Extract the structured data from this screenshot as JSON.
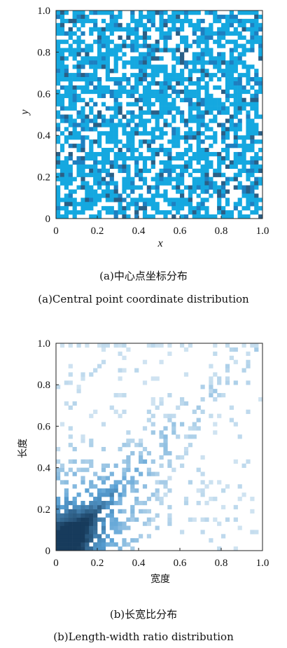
{
  "colors": {
    "scatter_dark": "#2a5f86",
    "scatter_mid": "#1e7fc0",
    "scatter_light": "#15a8e0",
    "hist_low": "#cfe3f1",
    "hist_high": "#173b5c"
  },
  "captions": {
    "a_cn": "(a)中心点坐标分布",
    "a_en": "(a)Central point coordinate distribution",
    "b_cn": "(b)长宽比分布",
    "b_en": "(b)Length-width ratio distribution"
  },
  "chart_data": [
    {
      "id": "a",
      "type": "heatmap",
      "title": "",
      "xlabel": "x",
      "ylabel": "y",
      "xlim": [
        0,
        1
      ],
      "ylim": [
        0,
        1
      ],
      "x_ticks": [
        "0",
        "0.2",
        "0.4",
        "0.6",
        "0.8",
        "1.0"
      ],
      "y_ticks": [
        "0",
        "0.2",
        "0.4",
        "0.6",
        "0.8",
        "1.0"
      ],
      "bins": 50,
      "fill_fraction": 0.64,
      "description_levels": [
        "none",
        "light",
        "mid",
        "dark"
      ]
    },
    {
      "id": "b",
      "type": "heatmap",
      "title": "",
      "xlabel": "宽度",
      "ylabel": "长度",
      "xlim": [
        0,
        1
      ],
      "ylim": [
        0,
        1
      ],
      "x_ticks": [
        "0",
        "0.2",
        "0.4",
        "0.6",
        "0.8",
        "1.0"
      ],
      "y_ticks": [
        "0",
        "0.2",
        "0.4",
        "0.6",
        "0.8",
        "1.0"
      ],
      "bins": 50,
      "density_peak": [
        0.06,
        0.06
      ],
      "density_trend": "concentrated near origin, spreading along diagonal y≈x"
    }
  ]
}
